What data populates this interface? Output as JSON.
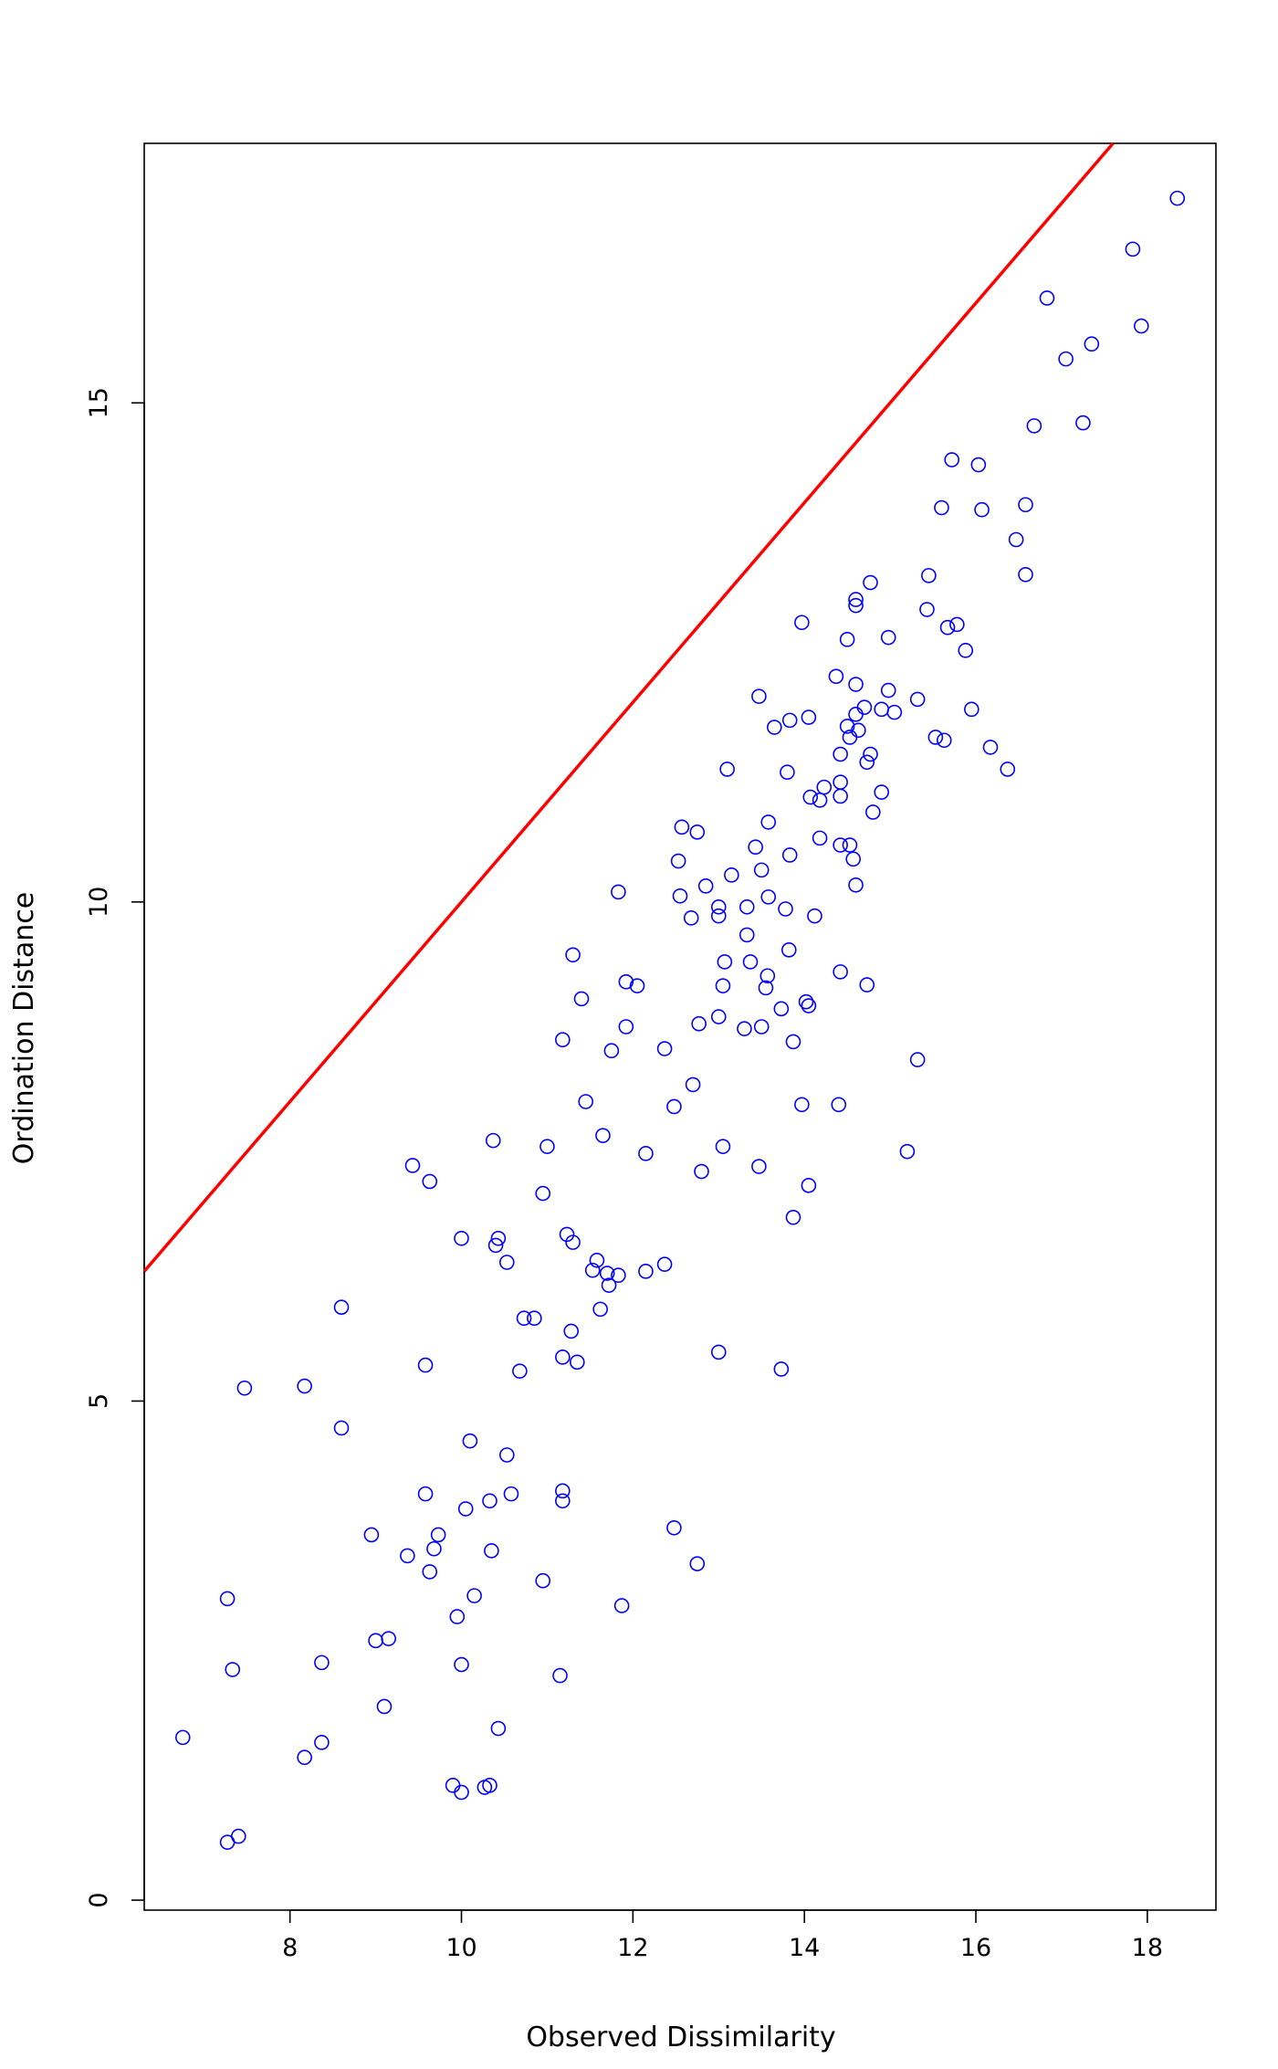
{
  "chart_data": {
    "type": "scatter",
    "title": "",
    "xlabel": "Observed Dissimilarity",
    "ylabel": "Ordination Distance",
    "xlim": [
      6.3,
      18.8
    ],
    "ylim": [
      -0.1,
      17.6
    ],
    "xticks": [
      8,
      10,
      12,
      14,
      16,
      18
    ],
    "yticks": [
      0,
      5,
      10,
      15
    ],
    "grid": false,
    "point_color": "#0000ff",
    "line_color": "#ff0000",
    "reference_line": {
      "type": "line",
      "x": [
        6.3,
        17.6
      ],
      "y": [
        6.3,
        17.6
      ]
    },
    "points": [
      [
        6.75,
        1.63
      ],
      [
        7.27,
        0.58
      ],
      [
        7.4,
        0.64
      ],
      [
        7.27,
        3.02
      ],
      [
        7.33,
        2.31
      ],
      [
        7.47,
        5.13
      ],
      [
        8.17,
        5.15
      ],
      [
        8.17,
        1.43
      ],
      [
        8.37,
        1.58
      ],
      [
        8.37,
        2.38
      ],
      [
        8.6,
        5.94
      ],
      [
        8.6,
        4.73
      ],
      [
        8.95,
        3.66
      ],
      [
        9.0,
        2.6
      ],
      [
        9.1,
        1.94
      ],
      [
        9.15,
        2.62
      ],
      [
        9.37,
        3.45
      ],
      [
        9.43,
        7.36
      ],
      [
        9.58,
        4.07
      ],
      [
        9.58,
        5.36
      ],
      [
        9.63,
        3.29
      ],
      [
        9.63,
        7.2
      ],
      [
        9.68,
        3.52
      ],
      [
        9.73,
        3.66
      ],
      [
        9.9,
        1.15
      ],
      [
        9.95,
        2.84
      ],
      [
        10.0,
        1.08
      ],
      [
        10.0,
        2.36
      ],
      [
        10.0,
        6.63
      ],
      [
        10.05,
        3.92
      ],
      [
        10.1,
        4.6
      ],
      [
        10.15,
        3.05
      ],
      [
        10.27,
        1.13
      ],
      [
        10.33,
        1.15
      ],
      [
        10.33,
        4.0
      ],
      [
        10.35,
        3.5
      ],
      [
        10.37,
        7.61
      ],
      [
        10.4,
        6.56
      ],
      [
        10.43,
        6.63
      ],
      [
        10.43,
        1.72
      ],
      [
        10.53,
        4.46
      ],
      [
        10.53,
        6.39
      ],
      [
        10.58,
        4.07
      ],
      [
        10.68,
        5.3
      ],
      [
        10.73,
        5.83
      ],
      [
        10.85,
        5.83
      ],
      [
        10.95,
        3.2
      ],
      [
        10.95,
        7.08
      ],
      [
        11.0,
        7.55
      ],
      [
        11.15,
        2.25
      ],
      [
        11.18,
        4.1
      ],
      [
        11.18,
        4.0
      ],
      [
        11.18,
        5.44
      ],
      [
        11.18,
        8.62
      ],
      [
        11.23,
        6.67
      ],
      [
        11.28,
        5.7
      ],
      [
        11.3,
        6.59
      ],
      [
        11.3,
        9.47
      ],
      [
        11.35,
        5.39
      ],
      [
        11.4,
        9.03
      ],
      [
        11.45,
        8.0
      ],
      [
        11.53,
        6.31
      ],
      [
        11.58,
        6.41
      ],
      [
        11.62,
        5.92
      ],
      [
        11.65,
        7.66
      ],
      [
        11.7,
        6.28
      ],
      [
        11.72,
        6.16
      ],
      [
        11.75,
        8.51
      ],
      [
        11.83,
        6.26
      ],
      [
        11.83,
        10.1
      ],
      [
        11.87,
        2.95
      ],
      [
        11.92,
        8.75
      ],
      [
        11.92,
        9.2
      ],
      [
        12.05,
        9.16
      ],
      [
        12.15,
        6.3
      ],
      [
        12.15,
        7.48
      ],
      [
        12.37,
        8.53
      ],
      [
        12.37,
        6.37
      ],
      [
        12.48,
        3.73
      ],
      [
        12.48,
        7.95
      ],
      [
        12.53,
        10.41
      ],
      [
        12.55,
        10.06
      ],
      [
        12.57,
        10.75
      ],
      [
        12.68,
        9.84
      ],
      [
        12.7,
        8.17
      ],
      [
        12.75,
        10.7
      ],
      [
        12.75,
        3.37
      ],
      [
        12.77,
        8.78
      ],
      [
        12.8,
        7.3
      ],
      [
        12.85,
        10.16
      ],
      [
        13.0,
        8.85
      ],
      [
        13.0,
        9.86
      ],
      [
        13.0,
        9.95
      ],
      [
        13.0,
        5.49
      ],
      [
        13.05,
        7.55
      ],
      [
        13.05,
        9.16
      ],
      [
        13.07,
        9.4
      ],
      [
        13.1,
        11.33
      ],
      [
        13.15,
        10.27
      ],
      [
        13.3,
        8.73
      ],
      [
        13.33,
        9.67
      ],
      [
        13.33,
        9.95
      ],
      [
        13.37,
        9.4
      ],
      [
        13.43,
        10.55
      ],
      [
        13.47,
        12.06
      ],
      [
        13.47,
        7.35
      ],
      [
        13.5,
        8.75
      ],
      [
        13.5,
        10.32
      ],
      [
        13.55,
        9.14
      ],
      [
        13.57,
        9.26
      ],
      [
        13.58,
        10.05
      ],
      [
        13.58,
        10.8
      ],
      [
        13.65,
        11.75
      ],
      [
        13.73,
        5.32
      ],
      [
        13.73,
        8.93
      ],
      [
        13.78,
        9.93
      ],
      [
        13.8,
        11.3
      ],
      [
        13.82,
        9.52
      ],
      [
        13.83,
        10.47
      ],
      [
        13.83,
        11.82
      ],
      [
        13.87,
        8.6
      ],
      [
        13.87,
        6.84
      ],
      [
        13.97,
        12.8
      ],
      [
        13.97,
        7.97
      ],
      [
        14.02,
        9.0
      ],
      [
        14.05,
        8.96
      ],
      [
        14.05,
        7.16
      ],
      [
        14.05,
        11.85
      ],
      [
        14.07,
        11.05
      ],
      [
        14.12,
        9.86
      ],
      [
        14.18,
        10.64
      ],
      [
        14.18,
        11.02
      ],
      [
        14.23,
        11.15
      ],
      [
        14.37,
        12.26
      ],
      [
        14.4,
        7.97
      ],
      [
        14.42,
        9.3
      ],
      [
        14.42,
        10.57
      ],
      [
        14.42,
        11.06
      ],
      [
        14.42,
        11.2
      ],
      [
        14.42,
        11.48
      ],
      [
        14.5,
        12.63
      ],
      [
        14.5,
        11.76
      ],
      [
        14.53,
        10.57
      ],
      [
        14.53,
        11.65
      ],
      [
        14.57,
        10.43
      ],
      [
        14.6,
        12.18
      ],
      [
        14.6,
        10.17
      ],
      [
        14.6,
        11.88
      ],
      [
        14.6,
        13.03
      ],
      [
        14.6,
        12.97
      ],
      [
        14.63,
        11.72
      ],
      [
        14.7,
        11.95
      ],
      [
        14.73,
        11.4
      ],
      [
        14.73,
        9.17
      ],
      [
        14.77,
        13.2
      ],
      [
        14.77,
        11.48
      ],
      [
        14.8,
        10.9
      ],
      [
        14.9,
        11.93
      ],
      [
        14.9,
        11.1
      ],
      [
        14.98,
        12.12
      ],
      [
        14.98,
        12.65
      ],
      [
        15.05,
        11.9
      ],
      [
        15.2,
        7.5
      ],
      [
        15.32,
        8.42
      ],
      [
        15.32,
        12.03
      ],
      [
        15.43,
        12.93
      ],
      [
        15.45,
        13.27
      ],
      [
        15.53,
        11.65
      ],
      [
        15.6,
        13.95
      ],
      [
        15.63,
        11.62
      ],
      [
        15.67,
        12.75
      ],
      [
        15.72,
        14.43
      ],
      [
        15.78,
        12.78
      ],
      [
        15.88,
        12.52
      ],
      [
        15.95,
        11.93
      ],
      [
        16.03,
        14.38
      ],
      [
        16.07,
        13.93
      ],
      [
        16.17,
        11.55
      ],
      [
        16.37,
        11.33
      ],
      [
        16.47,
        13.63
      ],
      [
        16.58,
        13.28
      ],
      [
        16.58,
        13.98
      ],
      [
        16.68,
        14.77
      ],
      [
        16.83,
        16.05
      ],
      [
        17.05,
        15.44
      ],
      [
        17.25,
        14.8
      ],
      [
        17.35,
        15.59
      ],
      [
        17.83,
        16.54
      ],
      [
        17.93,
        15.77
      ],
      [
        18.35,
        17.05
      ]
    ]
  }
}
